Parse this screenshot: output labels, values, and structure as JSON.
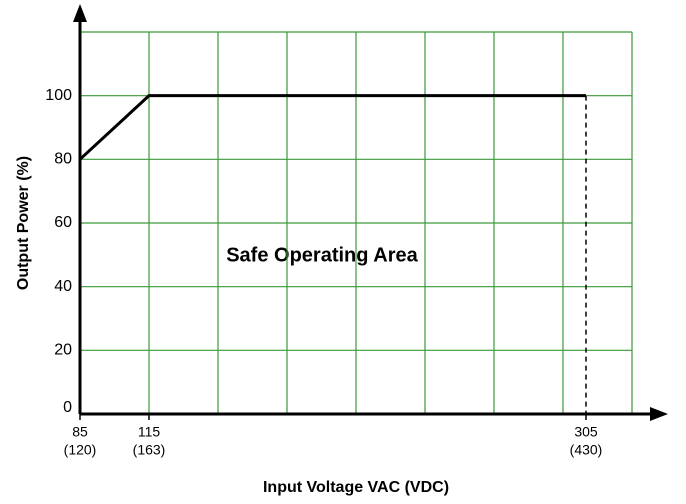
{
  "chart_data": {
    "type": "line",
    "xlabel": "Input Voltage VAC (VDC)",
    "ylabel": "Output Power (%)",
    "annotation": "Safe Operating Area",
    "xlim": [
      85,
      325
    ],
    "ylim": [
      0,
      120
    ],
    "xticks": [
      85,
      115,
      305
    ],
    "xtick_vdc": [
      "(120)",
      "(163)",
      "(430)"
    ],
    "yticks": [
      0,
      20,
      40,
      60,
      80,
      100
    ],
    "xgrid": [
      85,
      115,
      145,
      175,
      205,
      235,
      265,
      295,
      325
    ],
    "ygrid": [
      0,
      20,
      40,
      60,
      80,
      100,
      120
    ],
    "grid": true,
    "grid_color": "#3a9a3a",
    "series": [
      {
        "name": "Output Power",
        "color": "#000000",
        "x": [
          85,
          115,
          305
        ],
        "values": [
          80,
          100,
          100
        ]
      }
    ]
  }
}
